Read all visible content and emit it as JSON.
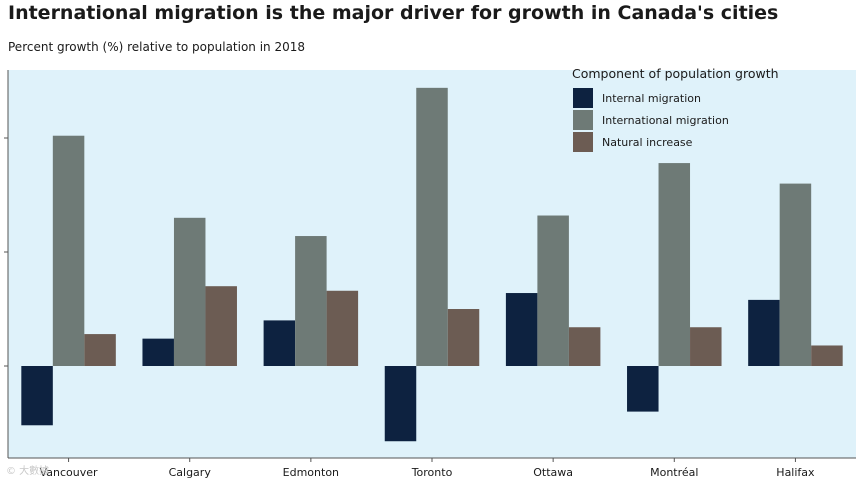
{
  "chart_data": {
    "type": "bar",
    "title": "International migration is the major driver for growth in Canada's cities",
    "subtitle": "Percent growth (%) relative to population in 2018",
    "xlabel": "",
    "ylabel": "",
    "ylim": [
      -0.35,
      1.3
    ],
    "categories": [
      "Vancouver",
      "Calgary",
      "Edmonton",
      "Toronto",
      "Ottawa",
      "Montréal",
      "Halifax"
    ],
    "series": [
      {
        "name": "Internal migration",
        "color": "#0d2240",
        "values": [
          -0.26,
          0.12,
          0.2,
          -0.33,
          0.32,
          -0.2,
          0.29
        ]
      },
      {
        "name": "International migration",
        "color": "#6e7a76",
        "values": [
          1.01,
          0.65,
          0.57,
          1.22,
          0.66,
          0.89,
          0.8
        ]
      },
      {
        "name": "Natural increase",
        "color": "#6c5c53",
        "values": [
          0.14,
          0.35,
          0.33,
          0.25,
          0.17,
          0.17,
          0.09
        ]
      }
    ],
    "legend": {
      "title": "Component of population growth",
      "position": "top-right"
    },
    "grid": false,
    "background": "#dff2fa"
  },
  "watermark": "© 大數據"
}
